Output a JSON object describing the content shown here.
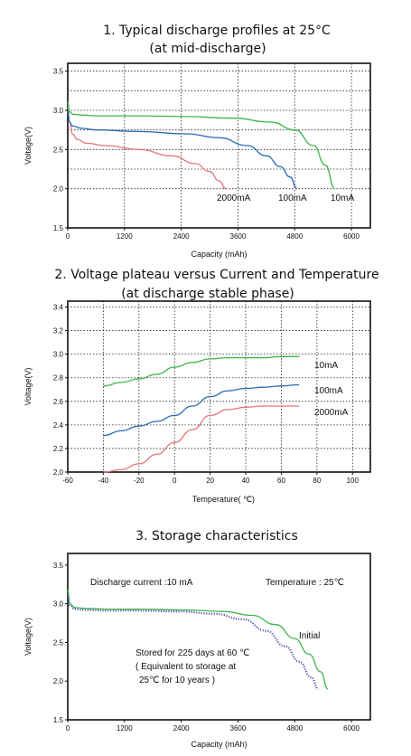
{
  "chart_data": [
    {
      "type": "line",
      "title": "1. Typical discharge profiles at 25°C",
      "subtitle": "(at mid-discharge)",
      "xlabel": "Capacity (mAh)",
      "ylabel": "Voltage(V)",
      "xlim": [
        0,
        6400
      ],
      "ylim": [
        1.5,
        3.6
      ],
      "xticks": [
        "0",
        "1200",
        "2400",
        "3600",
        "4800",
        "6000"
      ],
      "yticks": [
        "1.5",
        "2.0",
        "2.5",
        "3.0",
        "3.5"
      ],
      "grid": true,
      "series": [
        {
          "name": "2000mA",
          "color": "#e8737a",
          "x": [
            0,
            40,
            100,
            200,
            400,
            800,
            1500,
            2200,
            2700,
            3000,
            3200,
            3350
          ],
          "y": [
            3.05,
            2.85,
            2.7,
            2.63,
            2.58,
            2.55,
            2.5,
            2.42,
            2.32,
            2.22,
            2.1,
            2.0
          ]
        },
        {
          "name": "100mA",
          "color": "#2a6bb5",
          "x": [
            0,
            40,
            100,
            300,
            600,
            1500,
            2500,
            3200,
            3800,
            4200,
            4500,
            4700,
            4850
          ],
          "y": [
            3.0,
            2.85,
            2.8,
            2.77,
            2.75,
            2.73,
            2.7,
            2.65,
            2.55,
            2.42,
            2.28,
            2.15,
            2.0
          ]
        },
        {
          "name": "10mA",
          "color": "#3cb54a",
          "x": [
            0,
            40,
            100,
            300,
            600,
            1500,
            2500,
            3500,
            4300,
            4800,
            5200,
            5450,
            5650
          ],
          "y": [
            3.1,
            2.98,
            2.95,
            2.94,
            2.93,
            2.93,
            2.92,
            2.9,
            2.85,
            2.75,
            2.55,
            2.3,
            2.0
          ]
        }
      ]
    },
    {
      "type": "line",
      "title": "2. Voltage plateau versus Current and Temperature",
      "subtitle": "(at discharge stable phase)",
      "xlabel": "Temperature( ℃)",
      "ylabel": "Voltage(V)",
      "xlim": [
        -60,
        110
      ],
      "ylim": [
        2.0,
        3.45
      ],
      "xticks": [
        "-60",
        "-40",
        "-20",
        "0",
        "20",
        "40",
        "60",
        "80",
        "100"
      ],
      "yticks": [
        "2.0",
        "2.2",
        "2.4",
        "2.6",
        "2.8",
        "3.0",
        "3.2",
        "3.4"
      ],
      "grid": true,
      "series": [
        {
          "name": "10mA",
          "color": "#3cb54a",
          "x": [
            -40,
            -30,
            -20,
            -10,
            0,
            10,
            20,
            30,
            40,
            50,
            60,
            70
          ],
          "y": [
            2.73,
            2.76,
            2.79,
            2.83,
            2.89,
            2.93,
            2.96,
            2.97,
            2.97,
            2.97,
            2.98,
            2.98
          ]
        },
        {
          "name": "100mA",
          "color": "#2a6bb5",
          "x": [
            -40,
            -30,
            -20,
            -10,
            0,
            10,
            20,
            30,
            40,
            50,
            60,
            70
          ],
          "y": [
            2.31,
            2.35,
            2.39,
            2.43,
            2.48,
            2.56,
            2.64,
            2.69,
            2.71,
            2.72,
            2.73,
            2.74
          ]
        },
        {
          "name": "2000mA",
          "color": "#e8737a",
          "x": [
            -40,
            -30,
            -20,
            -10,
            0,
            10,
            20,
            30,
            40,
            50,
            60,
            70
          ],
          "y": [
            1.98,
            2.02,
            2.07,
            2.15,
            2.25,
            2.36,
            2.48,
            2.53,
            2.55,
            2.56,
            2.56,
            2.56
          ]
        }
      ]
    },
    {
      "type": "line",
      "title": "3. Storage characteristics",
      "xlabel": "Capacity (mAh)",
      "ylabel": "Voltage(V)",
      "xlim": [
        0,
        6400
      ],
      "ylim": [
        1.5,
        3.65
      ],
      "xticks": [
        "0",
        "1200",
        "2400",
        "3600",
        "4800",
        "6000"
      ],
      "yticks": [
        "1.5",
        "2.0",
        "2.5",
        "3.0",
        "3.5"
      ],
      "grid": false,
      "annotations": {
        "discharge": "Discharge current  :10 mA",
        "temperature": "Temperature : 25℃",
        "initial": "Initial",
        "stored_line1": "Stored for 225 days at 60  ℃",
        "stored_line2": "( Equivalent to storage at",
        "stored_line3": "25℃ for 10 years  )"
      },
      "series": [
        {
          "name": "Initial",
          "color": "#3cb54a",
          "style": "solid",
          "x": [
            0,
            40,
            150,
            400,
            800,
            1500,
            2500,
            3300,
            3900,
            4400,
            4800,
            5100,
            5350,
            5500
          ],
          "y": [
            3.18,
            3.0,
            2.95,
            2.94,
            2.93,
            2.93,
            2.92,
            2.9,
            2.85,
            2.73,
            2.55,
            2.35,
            2.12,
            1.9
          ]
        },
        {
          "name": "Stored for 225 days at 60 ℃",
          "color": "#4a4ab0",
          "style": "dotted",
          "x": [
            0,
            40,
            150,
            400,
            800,
            1500,
            2400,
            3100,
            3700,
            4200,
            4600,
            4900,
            5150,
            5300
          ],
          "y": [
            3.12,
            2.98,
            2.93,
            2.92,
            2.91,
            2.91,
            2.9,
            2.87,
            2.8,
            2.65,
            2.45,
            2.25,
            2.05,
            1.9
          ]
        }
      ]
    }
  ]
}
